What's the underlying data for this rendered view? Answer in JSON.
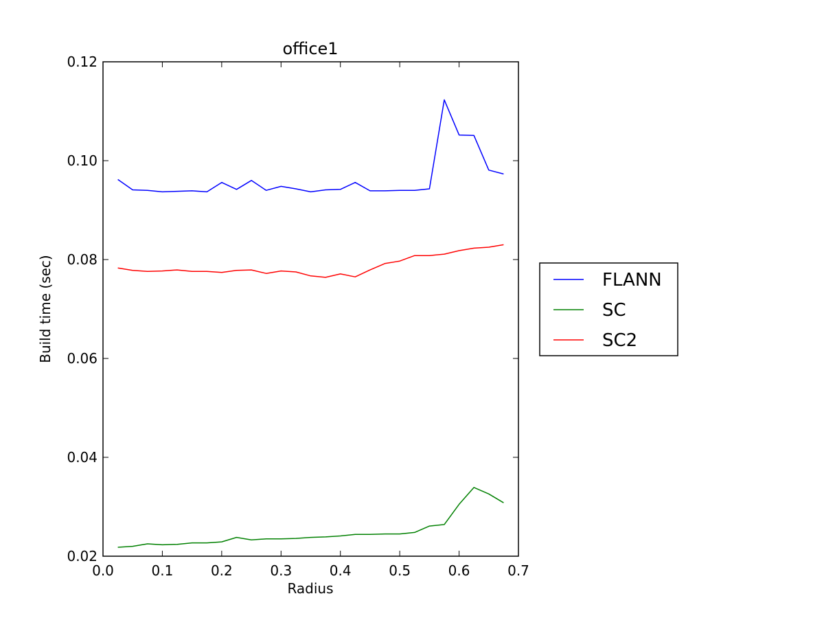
{
  "chart_data": {
    "type": "line",
    "title": "office1",
    "xlabel": "Radius",
    "ylabel": "Build time (sec)",
    "xlim": [
      0.0,
      0.7
    ],
    "ylim": [
      0.02,
      0.12
    ],
    "xticks": [
      "0.0",
      "0.1",
      "0.2",
      "0.3",
      "0.4",
      "0.5",
      "0.6",
      "0.7"
    ],
    "yticks": [
      "0.02",
      "0.04",
      "0.06",
      "0.08",
      "0.10",
      "0.12"
    ],
    "grid": false,
    "legend_position": "outside-right",
    "x": [
      0.025,
      0.05,
      0.075,
      0.1,
      0.125,
      0.15,
      0.175,
      0.2,
      0.225,
      0.25,
      0.275,
      0.3,
      0.325,
      0.35,
      0.375,
      0.4,
      0.425,
      0.45,
      0.475,
      0.5,
      0.525,
      0.55,
      0.575,
      0.6,
      0.625,
      0.65,
      0.675
    ],
    "series": [
      {
        "name": "FLANN",
        "color": "#0000ff",
        "values": [
          0.0962,
          0.0941,
          0.094,
          0.0937,
          0.0938,
          0.0939,
          0.0937,
          0.0956,
          0.0942,
          0.096,
          0.094,
          0.0948,
          0.0943,
          0.0937,
          0.0941,
          0.0942,
          0.0956,
          0.0939,
          0.0939,
          0.094,
          0.094,
          0.0943,
          0.1123,
          0.1052,
          0.1051,
          0.0981,
          0.0973
        ]
      },
      {
        "name": "SC",
        "color": "#008000",
        "values": [
          0.0218,
          0.022,
          0.0225,
          0.0223,
          0.0224,
          0.0227,
          0.0227,
          0.0229,
          0.0238,
          0.0233,
          0.0235,
          0.0235,
          0.0236,
          0.0238,
          0.0239,
          0.0241,
          0.0244,
          0.0244,
          0.0245,
          0.0245,
          0.0248,
          0.0261,
          0.0264,
          0.0305,
          0.0339,
          0.0326,
          0.0308
        ]
      },
      {
        "name": "SC2",
        "color": "#ff0000",
        "values": [
          0.0783,
          0.0778,
          0.0776,
          0.0777,
          0.0779,
          0.0776,
          0.0776,
          0.0774,
          0.0778,
          0.0779,
          0.0772,
          0.0777,
          0.0775,
          0.0767,
          0.0764,
          0.0771,
          0.0765,
          0.0779,
          0.0792,
          0.0797,
          0.0808,
          0.0808,
          0.0811,
          0.0818,
          0.0823,
          0.0825,
          0.083
        ]
      }
    ]
  }
}
